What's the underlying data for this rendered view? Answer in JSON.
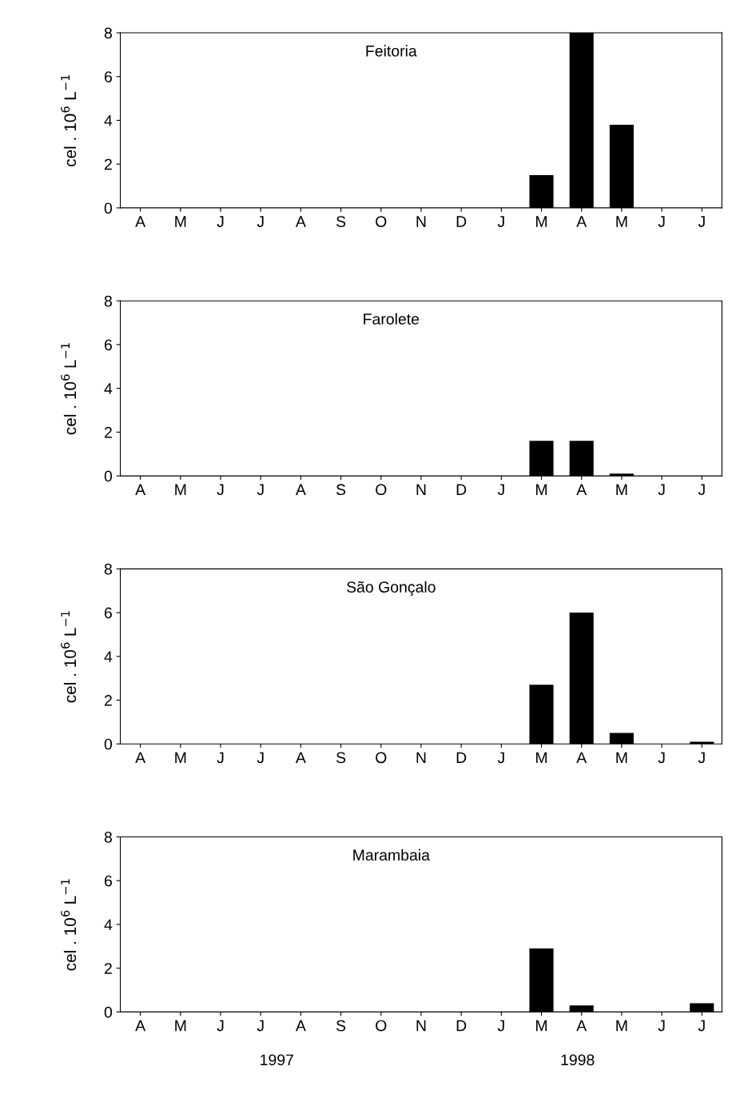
{
  "chart_data": [
    {
      "type": "bar",
      "title": "Feitoria",
      "ylabel": "cel . 10$^{6}$ L$^{−1}$",
      "categories": [
        "A",
        "M",
        "J",
        "J",
        "A",
        "S",
        "O",
        "N",
        "D",
        "J",
        "M",
        "A",
        "M",
        "J",
        "J"
      ],
      "values": [
        null,
        null,
        null,
        null,
        null,
        null,
        null,
        null,
        null,
        0,
        1.5,
        8.0,
        3.8,
        0,
        0
      ],
      "color": "#000000",
      "ylim": [
        0,
        8
      ],
      "yticks": [
        0,
        2,
        4,
        6,
        8
      ],
      "grid": false
    },
    {
      "type": "bar",
      "title": "Farolete",
      "ylabel": "cel . 10$^{6}$ L$^{−1}$",
      "categories": [
        "A",
        "M",
        "J",
        "J",
        "A",
        "S",
        "O",
        "N",
        "D",
        "J",
        "M",
        "A",
        "M",
        "J",
        "J"
      ],
      "values": [
        null,
        null,
        null,
        null,
        null,
        null,
        null,
        null,
        null,
        0,
        1.6,
        1.6,
        0.1,
        0,
        0
      ],
      "color": "#000000",
      "ylim": [
        0,
        8
      ],
      "yticks": [
        0,
        2,
        4,
        6,
        8
      ],
      "grid": false
    },
    {
      "type": "bar",
      "title": "São Gonçalo",
      "ylabel": "cel . 10$^{6}$ L$^{−1}$",
      "categories": [
        "A",
        "M",
        "J",
        "J",
        "A",
        "S",
        "O",
        "N",
        "D",
        "J",
        "M",
        "A",
        "M",
        "J",
        "J"
      ],
      "values": [
        null,
        null,
        null,
        null,
        null,
        null,
        null,
        null,
        null,
        0,
        2.7,
        6.0,
        0.5,
        0,
        0.1
      ],
      "color": "#000000",
      "ylim": [
        0,
        8
      ],
      "yticks": [
        0,
        2,
        4,
        6,
        8
      ],
      "grid": false
    },
    {
      "type": "bar",
      "title": "Marambaia",
      "ylabel": "cel . 10$^{6}$ L$^{−1}$",
      "categories": [
        "A",
        "M",
        "J",
        "J",
        "A",
        "S",
        "O",
        "N",
        "D",
        "J",
        "M",
        "A",
        "M",
        "J",
        "J"
      ],
      "values": [
        null,
        null,
        null,
        null,
        null,
        null,
        null,
        null,
        null,
        0,
        2.9,
        0.3,
        0,
        0,
        0.4
      ],
      "color": "#000000",
      "ylim": [
        0,
        8
      ],
      "yticks": [
        0,
        2,
        4,
        6,
        8
      ],
      "grid": false,
      "annotations": [
        "1997",
        "1998"
      ]
    }
  ]
}
